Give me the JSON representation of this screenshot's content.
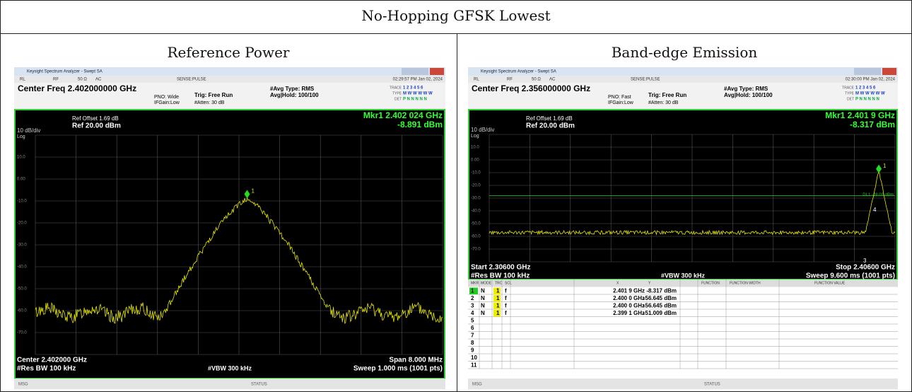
{
  "title": "No-Hopping GFSK Lowest",
  "panels": [
    {
      "label": "Reference Power",
      "screen": {
        "window_title": "Keysight Spectrum Analyzer - Swept SA",
        "status_row": [
          "RL",
          "RF",
          "50 Ω",
          "AC",
          "SENSE:PULSE"
        ],
        "timestamp": "02:29:57 PM Jan 02, 2024",
        "center_freq": "Center Freq 2.402000000 GHz",
        "pno": "PNO: Wide",
        "ifgain": "IFGain:Low",
        "trig": "Trig: Free Run",
        "atten": "#Atten: 30 dB",
        "avg_type": "#Avg Type: RMS",
        "avg_hold": "Avg|Hold: 100/100",
        "trace_labels": [
          "TRACE",
          "TYPE",
          "DET"
        ],
        "trace_values": [
          "1 2 3 4 5 6",
          "M W W W W W",
          "P N N N N N"
        ],
        "ref_offset": "Ref Offset 1.69 dB",
        "ref_level": "Ref 20.00 dBm",
        "scale": "10 dB/div",
        "scale_type": "Log",
        "marker_freq": "Mkr1 2.402 024 GHz",
        "marker_level": "-8.891 dBm",
        "y_labels": [
          "10.0",
          "0.00",
          "-10.0",
          "-20.0",
          "-30.0",
          "-40.0",
          "-50.0",
          "-60.0",
          "-70.0"
        ],
        "marker_labels": [
          "1"
        ],
        "bottom_left": "Center 2.402000 GHz",
        "rbw": "#Res BW 100 kHz",
        "vbw": "#VBW 300 kHz",
        "bottom_right": "Span 8.000 MHz",
        "sweep": "Sweep 1.000 ms (1001 pts)",
        "msg": "MSG",
        "status": "STATUS"
      }
    },
    {
      "label": "Band-edge Emission",
      "screen": {
        "window_title": "Keysight Spectrum Analyzer - Swept SA",
        "status_row": [
          "RL",
          "RF",
          "50 Ω",
          "AC",
          "SENSE:PULSE"
        ],
        "timestamp": "02:30:00 PM Jan 02, 2024",
        "center_freq": "Center Freq 2.356000000 GHz",
        "pno": "PNO: Fast",
        "ifgain": "IFGain:Low",
        "trig": "Trig: Free Run",
        "atten": "#Atten: 30 dB",
        "avg_type": "#Avg Type: RMS",
        "avg_hold": "Avg|Hold: 100/100",
        "trace_labels": [
          "TRACE",
          "TYPE",
          "DET"
        ],
        "trace_values": [
          "1 2 3 4 5 6",
          "M W W W W W",
          "P N N N N N"
        ],
        "ref_offset": "Ref Offset 1.69 dB",
        "ref_level": "Ref 20.00 dBm",
        "scale": "10 dB/div",
        "scale_type": "Log",
        "marker_freq": "Mkr1 2.401 9 GHz",
        "marker_level": "-8.317 dBm",
        "y_labels": [
          "10.0",
          "0.00",
          "-10.0",
          "-20.0",
          "-30.0",
          "-40.0",
          "-50.0",
          "-60.0",
          "-70.0"
        ],
        "display_line": "DL1 -28.00 dBm",
        "marker_labels": [
          "1",
          "4",
          "3"
        ],
        "bottom_left": "Start 2.30600 GHz",
        "rbw": "#Res BW 100 kHz",
        "vbw": "#VBW 300 kHz",
        "bottom_right": "Stop 2.40600 GHz",
        "sweep": "Sweep 9.600 ms (1001 pts)",
        "marker_table": {
          "headers": [
            "MKR",
            "MODE",
            "TRC",
            "SCL",
            "X",
            "Y",
            "FUNCTION",
            "FUNCTION WIDTH",
            "FUNCTION VALUE"
          ],
          "rows": [
            [
              "1",
              "N",
              "1",
              "f",
              "2.401 9 GHz",
              "-8.317 dBm"
            ],
            [
              "2",
              "N",
              "1",
              "f",
              "2.400 0 GHz",
              "-56.645 dBm"
            ],
            [
              "3",
              "N",
              "1",
              "f",
              "2.400 0 GHz",
              "-56.645 dBm"
            ],
            [
              "4",
              "N",
              "1",
              "f",
              "2.399 1 GHz",
              "-51.009 dBm"
            ],
            [
              "5"
            ],
            [
              "6"
            ],
            [
              "7"
            ],
            [
              "8"
            ],
            [
              "9"
            ],
            [
              "10"
            ],
            [
              "11"
            ]
          ]
        },
        "msg": "MSG",
        "status": "STATUS"
      }
    }
  ]
}
